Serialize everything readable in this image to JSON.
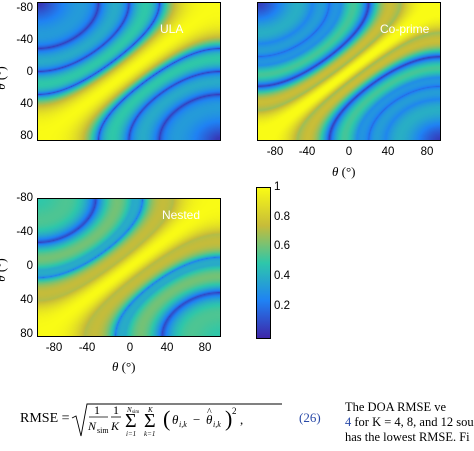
{
  "panels": [
    {
      "id": "ula",
      "label": "ULA",
      "ylabel": "θ",
      "yunit": "(°)",
      "xlabel": "",
      "xunit": ""
    },
    {
      "id": "coprime",
      "label": "Co-prime",
      "ylabel": "",
      "yunit": "",
      "xlabel": "θ",
      "xunit": "(°)"
    },
    {
      "id": "nested",
      "label": "Nested",
      "ylabel": "θ",
      "yunit": "(°)",
      "xlabel": "θ",
      "xunit": "(°)"
    }
  ],
  "ticks": {
    "y": [
      "-80",
      "-40",
      "0",
      "40",
      "80"
    ],
    "x": [
      "-80",
      "-40",
      "0",
      "40",
      "80"
    ]
  },
  "colorbar": {
    "ticks": [
      "1",
      "0.8",
      "0.6",
      "0.4",
      "0.2"
    ],
    "colors": [
      "#3e26a8",
      "#1f82f4",
      "#2ec7aa",
      "#c7bc39",
      "#f9fb15"
    ]
  },
  "chart_data": {
    "type": "heatmap",
    "x_range": [
      -90,
      90
    ],
    "y_range": [
      -90,
      90
    ],
    "color_range": [
      0,
      1
    ],
    "xlabel": "θ (°)",
    "ylabel": "θ (°)",
    "series": [
      {
        "name": "ULA"
      },
      {
        "name": "Co-prime"
      },
      {
        "name": "Nested"
      }
    ]
  },
  "equation": {
    "lhs": "RMSE =",
    "number": "(26)"
  },
  "sidetext": {
    "line1": "The DOA RMSE ve",
    "line2_ref": "4",
    "line2_rest": " for K = 4, 8, and 12 sou",
    "line3": "has the lowest RMSE. Fi"
  }
}
